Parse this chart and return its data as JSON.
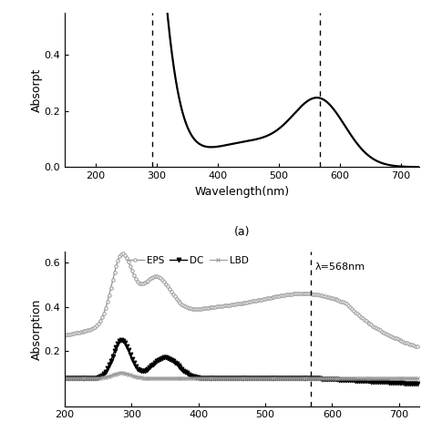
{
  "top_chart": {
    "xlabel": "Wavelength(nm)",
    "ylabel": "Absorpt",
    "xlim": [
      150,
      730
    ],
    "ylim": [
      0.0,
      0.55
    ],
    "yticks": [
      0.0,
      0.2,
      0.4
    ],
    "xticks": [
      200,
      300,
      400,
      500,
      600,
      700
    ],
    "vlines": [
      293,
      568
    ],
    "label_a": "(a)"
  },
  "bottom_chart": {
    "ylabel": "Absorption",
    "xlim": [
      200,
      730
    ],
    "ylim": [
      -0.05,
      0.65
    ],
    "yticks": [
      0.2,
      0.4,
      0.6
    ],
    "xticks": [
      200,
      300,
      400,
      500,
      600,
      700
    ],
    "vline": 568,
    "vline_label": "λ=568nm",
    "legend": [
      "EPS",
      "DC",
      "LBD"
    ]
  },
  "bg_color": "#ffffff",
  "line_color": "#000000",
  "gray_color": "#999999"
}
